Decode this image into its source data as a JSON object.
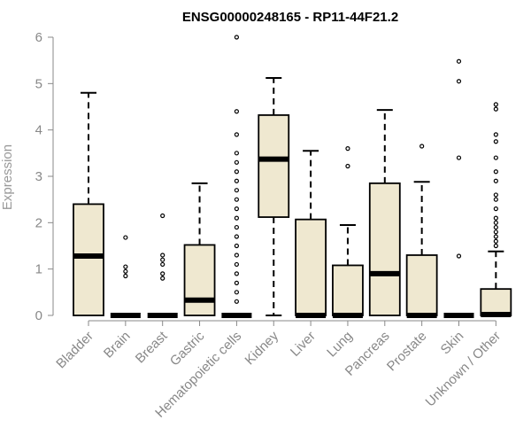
{
  "chart_data": {
    "type": "boxplot",
    "title": "ENSG00000248165 - RP11-44F21.2",
    "ylabel": "Expression",
    "xlabel": "",
    "ylim": [
      0,
      6
    ],
    "yticks": [
      0,
      1,
      2,
      3,
      4,
      5,
      6
    ],
    "box_fill": "#efe8d0",
    "box_stroke": "#000000",
    "axis_color": "#888888",
    "categories": [
      "Bladder",
      "Brain",
      "Breast",
      "Gastric",
      "Hematopoietic cells",
      "Kidney",
      "Liver",
      "Lung",
      "Pancreas",
      "Prostate",
      "Skin",
      "Unknown / Other"
    ],
    "boxes": [
      {
        "category": "Bladder",
        "min": 0,
        "q1": 0,
        "median": 1.28,
        "q3": 2.4,
        "max": 4.8,
        "outliers": []
      },
      {
        "category": "Brain",
        "min": 0,
        "q1": 0,
        "median": 0,
        "q3": 0,
        "max": 0,
        "outliers": [
          0.85,
          0.95,
          1.05,
          1.68
        ]
      },
      {
        "category": "Breast",
        "min": 0,
        "q1": 0,
        "median": 0,
        "q3": 0,
        "max": 0,
        "outliers": [
          0.8,
          0.9,
          1.1,
          1.2,
          1.3,
          2.15
        ]
      },
      {
        "category": "Gastric",
        "min": 0,
        "q1": 0,
        "median": 0.33,
        "q3": 1.52,
        "max": 2.85,
        "outliers": []
      },
      {
        "category": "Hematopoietic cells",
        "min": 0,
        "q1": 0,
        "median": 0,
        "q3": 0,
        "max": 0,
        "outliers": [
          0.3,
          0.5,
          0.7,
          0.9,
          1.1,
          1.3,
          1.5,
          1.7,
          1.9,
          2.1,
          2.3,
          2.5,
          2.7,
          2.9,
          3.1,
          3.3,
          3.5,
          3.9,
          4.4,
          6.0
        ]
      },
      {
        "category": "Kidney",
        "min": 0,
        "q1": 2.12,
        "median": 3.37,
        "q3": 4.32,
        "max": 5.12,
        "outliers": []
      },
      {
        "category": "Liver",
        "min": 0,
        "q1": 0,
        "median": 0,
        "q3": 2.07,
        "max": 3.55,
        "outliers": []
      },
      {
        "category": "Lung",
        "min": 0,
        "q1": 0,
        "median": 0,
        "q3": 1.08,
        "max": 1.95,
        "outliers": [
          3.22,
          3.6
        ]
      },
      {
        "category": "Pancreas",
        "min": 0,
        "q1": 0,
        "median": 0.9,
        "q3": 2.85,
        "max": 4.43,
        "outliers": []
      },
      {
        "category": "Prostate",
        "min": 0,
        "q1": 0,
        "median": 0,
        "q3": 1.3,
        "max": 2.88,
        "outliers": [
          3.65
        ]
      },
      {
        "category": "Skin",
        "min": 0,
        "q1": 0,
        "median": 0,
        "q3": 0,
        "max": 0,
        "outliers": [
          1.28,
          3.4,
          5.05,
          5.48
        ]
      },
      {
        "category": "Unknown / Other",
        "min": 0,
        "q1": 0,
        "median": 0.02,
        "q3": 0.57,
        "max": 1.38,
        "outliers": [
          1.5,
          1.6,
          1.7,
          1.8,
          1.9,
          2.0,
          2.1,
          2.3,
          2.5,
          2.6,
          2.9,
          3.1,
          3.4,
          3.75,
          3.9,
          4.45,
          4.55
        ]
      }
    ]
  }
}
